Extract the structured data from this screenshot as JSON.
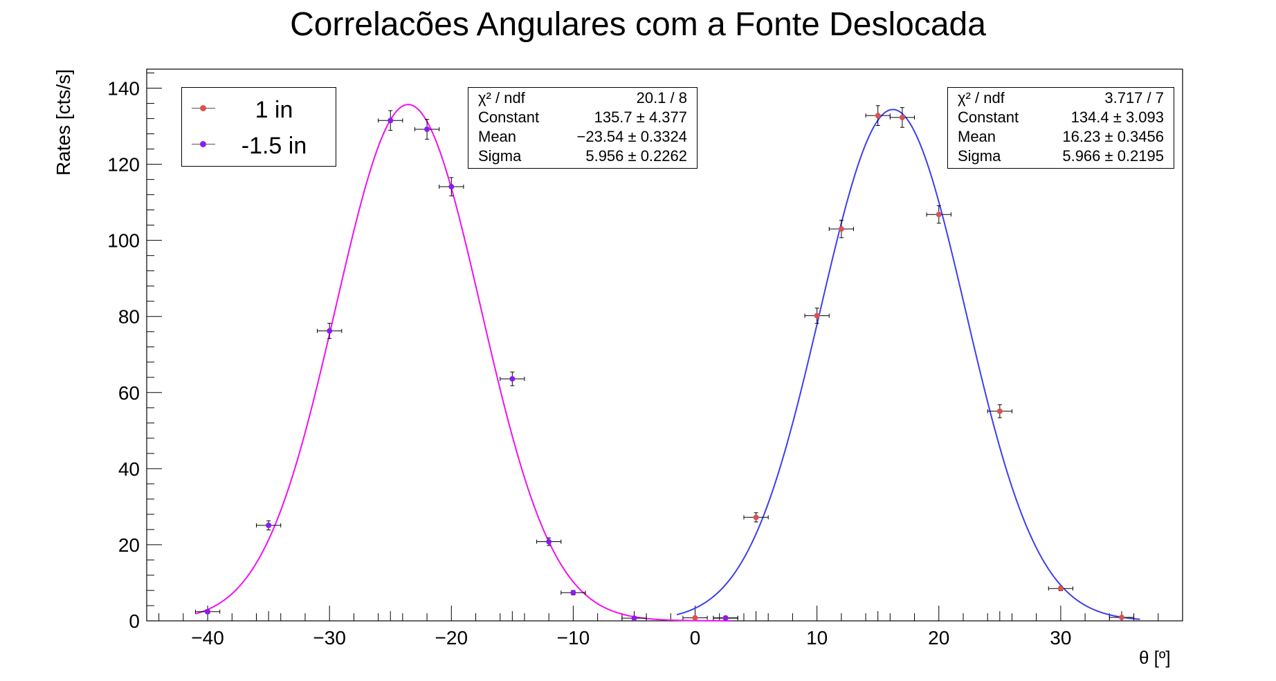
{
  "chart_data": {
    "type": "scatter",
    "title": "Correlacões Angulares com a Fonte Deslocada",
    "xlabel": "θ [º]",
    "ylabel": "Rates [cts/s]",
    "xlim": [
      -45,
      40
    ],
    "ylim": [
      0,
      145
    ],
    "xticks": [
      -40,
      -30,
      -20,
      -10,
      0,
      10,
      20,
      30
    ],
    "yticks": [
      0,
      20,
      40,
      60,
      80,
      100,
      120,
      140
    ],
    "legend_position": "top-left",
    "series": [
      {
        "name": "1 in",
        "marker_color": "#d9534f",
        "fit_color": "#3d3df0",
        "x_error": 1,
        "points": [
          {
            "x": 0,
            "y": 0.8,
            "ey": 0.3
          },
          {
            "x": 2.5,
            "y": 0.8,
            "ey": 0.3
          },
          {
            "x": 5,
            "y": 27.2,
            "ey": 1.2
          },
          {
            "x": 10,
            "y": 80.2,
            "ey": 2.0
          },
          {
            "x": 12,
            "y": 103.0,
            "ey": 2.3
          },
          {
            "x": 15,
            "y": 132.8,
            "ey": 2.6
          },
          {
            "x": 17,
            "y": 132.3,
            "ey": 2.6
          },
          {
            "x": 20,
            "y": 106.8,
            "ey": 2.3
          },
          {
            "x": 25,
            "y": 55.1,
            "ey": 1.7
          },
          {
            "x": 30,
            "y": 8.5,
            "ey": 0.6
          },
          {
            "x": 35,
            "y": 0.9,
            "ey": 0.3
          }
        ],
        "fit": {
          "function": "gaus",
          "chi2_ndf": "3.717 / 7",
          "constant": 134.4,
          "constant_err": 3.093,
          "mean": 16.23,
          "mean_err": 0.3456,
          "sigma": 5.966,
          "sigma_err": 0.2195,
          "range": [
            -1.5,
            36.5
          ]
        }
      },
      {
        "name": "-1.5 in",
        "marker_color": "#8b1cf0",
        "fit_color": "#f00ff0",
        "x_error": 1,
        "points": [
          {
            "x": -40,
            "y": 2.4,
            "ey": 0.5
          },
          {
            "x": -35,
            "y": 25.1,
            "ey": 1.2
          },
          {
            "x": -30,
            "y": 76.2,
            "ey": 2.0
          },
          {
            "x": -25,
            "y": 131.5,
            "ey": 2.6
          },
          {
            "x": -22,
            "y": 129.2,
            "ey": 2.6
          },
          {
            "x": -20,
            "y": 114.1,
            "ey": 2.4
          },
          {
            "x": -15,
            "y": 63.6,
            "ey": 1.8
          },
          {
            "x": -12,
            "y": 20.8,
            "ey": 1.0
          },
          {
            "x": -10,
            "y": 7.4,
            "ey": 0.6
          },
          {
            "x": -5,
            "y": 0.7,
            "ey": 0.3
          },
          {
            "x": 2.5,
            "y": 0.7,
            "ey": 0.3
          }
        ],
        "fit": {
          "function": "gaus",
          "chi2_ndf": "20.1 / 8",
          "constant": 135.7,
          "constant_err": 4.377,
          "mean": -23.54,
          "mean_err": 0.3324,
          "sigma": 5.956,
          "sigma_err": 0.2262,
          "range": [
            -41,
            3
          ]
        }
      }
    ]
  },
  "legend": {
    "entries": [
      {
        "label": "1 in"
      },
      {
        "label": "-1.5 in"
      }
    ]
  },
  "stats_left": {
    "chi2_key": "χ² / ndf",
    "chi2_val": "20.1 / 8",
    "constant_key": "Constant",
    "constant_val": "135.7 ± 4.377",
    "mean_key": "Mean",
    "mean_val": "−23.54 ± 0.3324",
    "sigma_key": "Sigma",
    "sigma_val": "5.956 ± 0.2262"
  },
  "stats_right": {
    "chi2_key": "χ² / ndf",
    "chi2_val": "3.717 / 7",
    "constant_key": "Constant",
    "constant_val": "134.4 ± 3.093",
    "mean_key": "Mean",
    "mean_val": "16.23 ± 0.3456",
    "sigma_key": "Sigma",
    "sigma_val": "5.966 ± 0.2195"
  }
}
